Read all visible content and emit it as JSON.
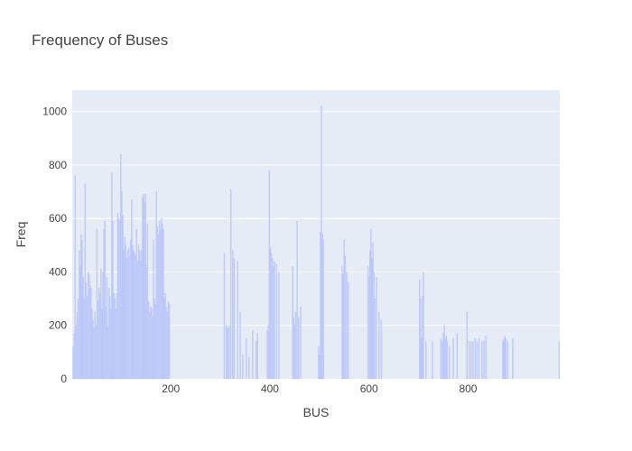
{
  "chart_data": {
    "type": "bar",
    "title": "Frequency of Buses",
    "xlabel": "BUS",
    "ylabel": "Freq",
    "xlim": [
      1,
      985
    ],
    "ylim": [
      0,
      1080
    ],
    "x_ticks": [
      200,
      400,
      600,
      800
    ],
    "y_ticks": [
      0,
      200,
      400,
      600,
      800,
      1000
    ],
    "grid": true,
    "legend": "none",
    "colors": {
      "bar": "#c9d3fb",
      "bar_stroke": "#aab8f5",
      "plot_bg": "#e5ecf6",
      "grid": "#ffffff",
      "text": "#444444"
    },
    "series": [
      {
        "x": [
          3,
          5,
          7,
          9,
          11,
          13,
          15,
          17,
          19,
          21,
          23,
          25,
          27,
          29,
          31,
          33,
          35,
          37,
          39,
          41,
          43,
          45,
          47,
          49,
          51,
          53,
          55,
          57,
          59,
          61,
          63,
          65,
          67,
          69,
          71,
          73,
          75,
          77,
          79,
          81,
          83,
          85,
          87,
          89,
          91,
          93,
          95,
          97,
          99,
          101,
          103,
          105,
          107,
          109,
          111,
          113,
          115,
          117,
          119,
          121,
          123,
          125,
          127,
          129,
          131,
          133,
          135,
          137,
          139,
          141,
          143,
          145,
          147,
          149,
          151,
          153,
          155,
          157,
          159,
          161,
          163,
          165,
          167,
          169,
          171,
          173,
          175,
          177,
          179,
          181,
          183,
          185,
          187,
          189,
          191,
          193,
          195,
          197,
          308,
          312,
          315,
          318,
          321,
          325,
          328,
          335,
          340,
          345,
          352,
          358,
          365,
          372,
          375,
          395,
          397,
          399,
          401,
          403,
          405,
          407,
          409,
          413,
          418,
          446,
          448,
          450,
          452,
          455,
          458,
          462,
          498,
          500,
          502,
          504,
          506,
          508,
          546,
          548,
          550,
          552,
          555,
          558,
          598,
          600,
          602,
          604,
          606,
          608,
          610,
          612,
          615,
          620,
          625,
          702,
          704,
          706,
          708,
          710,
          715,
          728,
          745,
          748,
          750,
          752,
          754,
          756,
          758,
          762,
          770,
          778,
          798,
          802,
          806,
          810,
          814,
          818,
          822,
          828,
          832,
          836,
          870,
          872,
          874,
          876,
          880,
          890,
          984
        ],
        "values": [
          120,
          170,
          760,
          200,
          250,
          300,
          480,
          420,
          540,
          520,
          380,
          300,
          730,
          360,
          310,
          400,
          390,
          350,
          340,
          260,
          220,
          190,
          250,
          200,
          560,
          290,
          340,
          320,
          410,
          260,
          400,
          560,
          590,
          270,
          380,
          200,
          340,
          310,
          260,
          770,
          590,
          320,
          300,
          260,
          320,
          620,
          600,
          590,
          840,
          700,
          610,
          480,
          530,
          500,
          450,
          480,
          490,
          460,
          520,
          670,
          500,
          480,
          470,
          460,
          560,
          440,
          500,
          480,
          440,
          480,
          680,
          690,
          660,
          690,
          420,
          580,
          290,
          250,
          270,
          260,
          230,
          520,
          300,
          280,
          700,
          570,
          540,
          590,
          560,
          600,
          580,
          560,
          300,
          320,
          270,
          250,
          290,
          280,
          470,
          200,
          190,
          200,
          710,
          480,
          450,
          440,
          250,
          90,
          150,
          80,
          180,
          140,
          170,
          180,
          200,
          780,
          490,
          470,
          450,
          420,
          440,
          430,
          400,
          420,
          230,
          200,
          250,
          590,
          230,
          270,
          120,
          90,
          550,
          1020,
          540,
          520,
          420,
          390,
          520,
          460,
          400,
          360,
          420,
          380,
          480,
          560,
          450,
          510,
          400,
          300,
          380,
          250,
          220,
          370,
          300,
          150,
          310,
          400,
          140,
          140,
          150,
          140,
          170,
          200,
          150,
          160,
          140,
          120,
          150,
          170,
          250,
          140,
          140,
          140,
          150,
          140,
          150,
          140,
          145,
          160,
          140,
          150,
          160,
          150,
          140,
          150,
          140
        ]
      }
    ]
  }
}
